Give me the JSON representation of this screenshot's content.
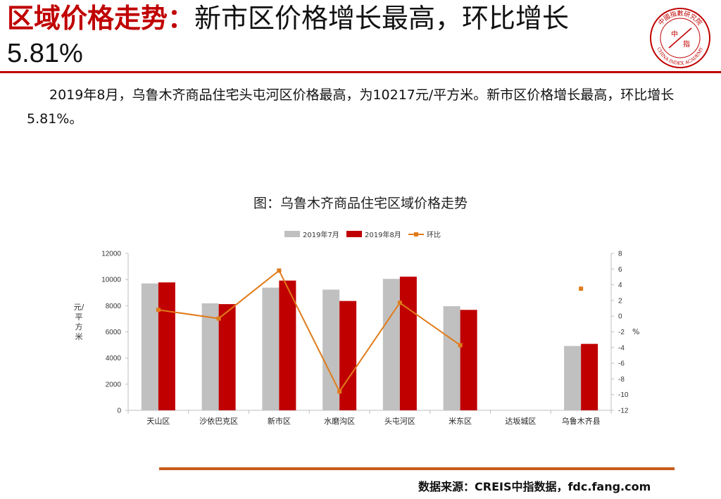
{
  "header": {
    "title_red": "区域价格走势：",
    "title_black": "新市区价格增长最高，环比增长",
    "title_line2": "5.81%",
    "logo_text_top": "中國指數研究院",
    "logo_center_1": "中",
    "logo_center_2": "指",
    "logo_text_bottom": "CHINA INDEX ACADEMY"
  },
  "body": {
    "paragraph": "2019年8月，乌鲁木齐商品住宅头屯河区价格最高，为10217元/平方米。新市区价格增长最高，环比增长5.81%。"
  },
  "chart_data": {
    "type": "bar",
    "title": "图：乌鲁木齐商品住宅区域价格走势",
    "categories": [
      "天山区",
      "沙依巴克区",
      "新市区",
      "水磨沟区",
      "头屯河区",
      "米东区",
      "达坂城区",
      "乌鲁木齐县"
    ],
    "series": [
      {
        "name": "2019年7月",
        "kind": "bar",
        "color": "#c0c0c0",
        "values": [
          9700,
          8180,
          9380,
          9230,
          10050,
          7960,
          null,
          4920
        ]
      },
      {
        "name": "2019年8月",
        "kind": "bar",
        "color": "#c00000",
        "values": [
          9780,
          8120,
          9920,
          8360,
          10217,
          7680,
          null,
          5080
        ]
      },
      {
        "name": "环比",
        "kind": "line",
        "axis": "right",
        "color": "#e07b1a",
        "values": [
          0.8,
          -0.3,
          5.81,
          -9.6,
          1.7,
          -3.7,
          null,
          3.5
        ]
      }
    ],
    "ylabel": "元/平方米",
    "ylabel_right": "%",
    "ylim": [
      0,
      12000
    ],
    "y_ticks": [
      "12000",
      "10000",
      "8000",
      "6000",
      "4000",
      "2000",
      "0"
    ],
    "ylim_right": [
      -12,
      8
    ],
    "y2_ticks": [
      "8",
      "6",
      "4",
      "2",
      "0",
      "-2",
      "-4",
      "-6",
      "-8",
      "-10",
      "-12"
    ],
    "legend_position": "top",
    "grid": false
  },
  "footer": {
    "source": "数据来源：CREIS中指数据，fdc.fang.com"
  }
}
